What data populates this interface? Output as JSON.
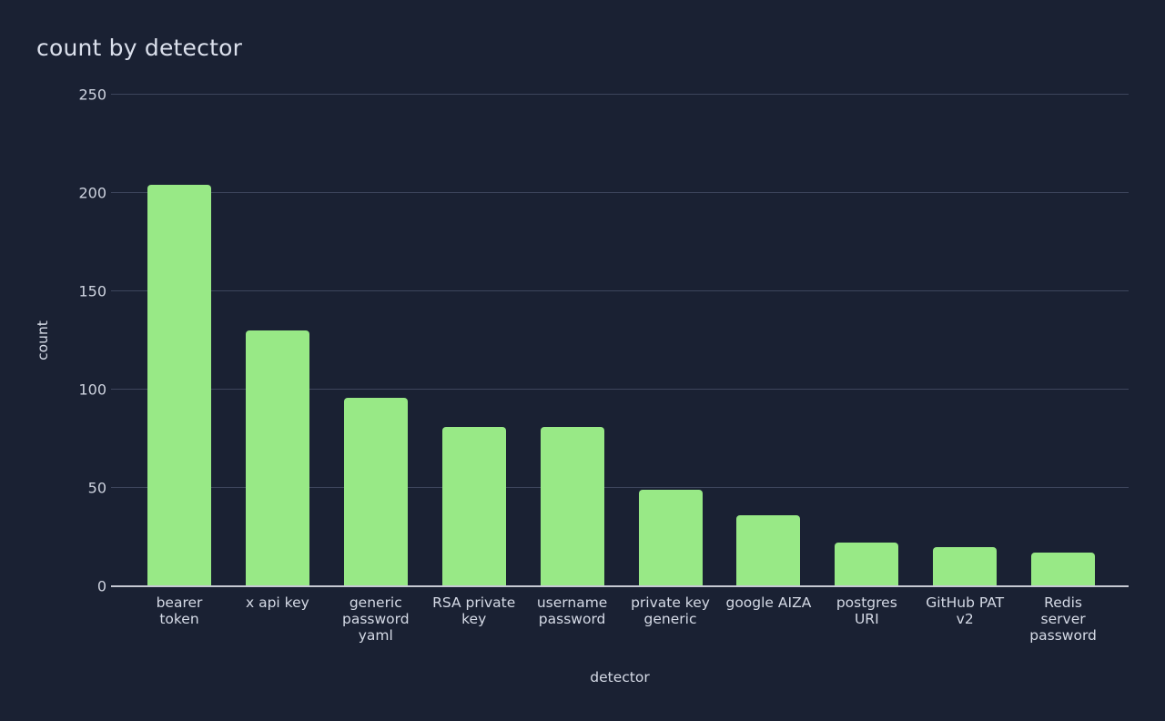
{
  "chart_data": {
    "type": "bar",
    "title": "count by detector",
    "xlabel": "detector",
    "ylabel": "count",
    "categories": [
      "bearer token",
      "x api key",
      "generic password yaml",
      "RSA private key",
      "username password",
      "private key generic",
      "google AIZA",
      "postgres URI",
      "GitHub PAT v2",
      "Redis server password"
    ],
    "category_display": [
      "bearer\ntoken",
      "x api key",
      "generic\npassword\nyaml",
      "RSA private\nkey",
      "username\npassword",
      "private key\ngeneric",
      "google AIZA",
      "postgres\nURI",
      "GitHub PAT\nv2",
      "Redis\nserver\npassword"
    ],
    "values": [
      204,
      130,
      96,
      81,
      81,
      49,
      36,
      22,
      20,
      17
    ],
    "yticks": [
      0,
      50,
      100,
      150,
      200,
      250
    ],
    "ylim": [
      0,
      250
    ],
    "grid": true,
    "legend": "none",
    "colors": {
      "bar": "#98e986",
      "background": "#1a2133",
      "grid": "#3d455c",
      "axis_line": "#c6c9d3",
      "text": "#d5dae6"
    }
  }
}
